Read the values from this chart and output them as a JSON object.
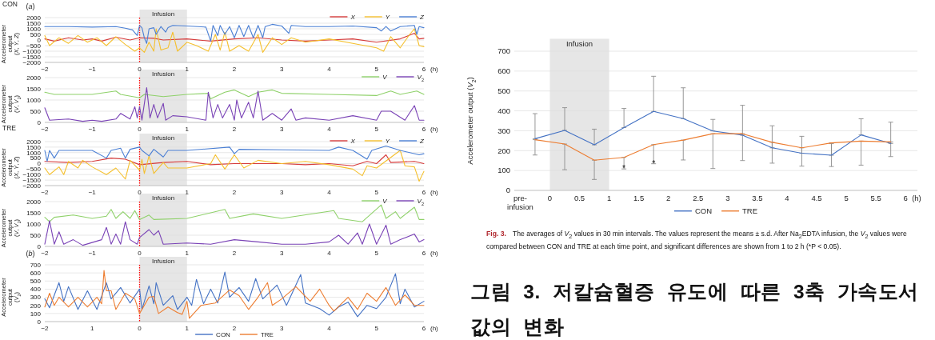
{
  "chart_data": [
    {
      "type": "line",
      "title": "CON",
      "xlabel": "(h)",
      "ylabel": "Accelerometer output (*X*, *Y*, *Z*)",
      "annotations": [
        "(*a*)"
      ],
      "xlim": [
        -2,
        6
      ],
      "ylim": [
        -2000,
        2000
      ],
      "xticks": [
        -2,
        -1,
        0,
        1,
        2,
        3,
        4,
        5,
        6
      ],
      "yticks": [
        -2000,
        -1500,
        -1000,
        -500,
        0,
        500,
        1000,
        1500,
        2000
      ],
      "grid": "y",
      "legend": "top right",
      "bands": [
        {
          "axis": "x",
          "from": 0,
          "to": 1,
          "label": "Infusion",
          "color": "#e6e6e6"
        }
      ],
      "ref_lines": [
        {
          "axis": "x",
          "value": 0,
          "color": "#ff0000",
          "line_style": "dotted"
        }
      ],
      "series": [
        {
          "name": "*X*",
          "color": "#d63b3b",
          "x": [
            -2,
            -1.8,
            -1.5,
            -1.2,
            -1,
            -0.8,
            -0.5,
            -0.2,
            0,
            0.3,
            0.5,
            1,
            1.5,
            2,
            2.5,
            3,
            3.5,
            4,
            4.5,
            5,
            5.5,
            5.8,
            5.9,
            6
          ],
          "values": [
            100,
            -100,
            200,
            0,
            100,
            -100,
            250,
            0,
            200,
            150,
            0,
            100,
            -100,
            100,
            200,
            0,
            -100,
            0,
            100,
            -200,
            100,
            600,
            100,
            150
          ]
        },
        {
          "name": "*Y*",
          "color": "#f5c02e",
          "x": [
            -2,
            -1.9,
            -1.7,
            -1.5,
            -1.3,
            -1.1,
            -0.9,
            -0.7,
            -0.5,
            -0.3,
            -0.1,
            0,
            0.1,
            0.2,
            0.3,
            0.35,
            0.45,
            0.6,
            0.7,
            0.8,
            1,
            1.2,
            1.45,
            1.6,
            1.7,
            1.8,
            1.9,
            2.1,
            2.3,
            2.5,
            2.6,
            2.8,
            3,
            3.2,
            3.5,
            4,
            4.5,
            5,
            5.15,
            5.3,
            5.5,
            5.7,
            5.8,
            5.9,
            6
          ],
          "values": [
            400,
            -500,
            200,
            -300,
            400,
            -200,
            200,
            -500,
            300,
            -400,
            -1000,
            -700,
            -1100,
            -200,
            -1000,
            1000,
            -900,
            -700,
            700,
            -1000,
            -200,
            -500,
            -1000,
            500,
            -900,
            700,
            -1000,
            -500,
            -1000,
            500,
            -1100,
            200,
            -400,
            200,
            -200,
            100,
            -300,
            -700,
            -1000,
            300,
            -700,
            500,
            1000,
            -500,
            -600
          ]
        },
        {
          "name": "*Z*",
          "color": "#4a7fd4",
          "x": [
            -2,
            -1.5,
            -1,
            -0.5,
            -0.3,
            -0.15,
            -0.05,
            0,
            0.05,
            0.1,
            0.15,
            0.2,
            0.3,
            0.35,
            0.45,
            0.55,
            0.6,
            0.7,
            1,
            1.4,
            1.5,
            1.55,
            1.65,
            1.7,
            1.8,
            1.9,
            2,
            2.1,
            2.2,
            2.3,
            2.4,
            2.5,
            2.6,
            2.65,
            2.8,
            3,
            3.15,
            3.2,
            3.5,
            4,
            4.5,
            5,
            5.1,
            5.2,
            5.3,
            5.5,
            5.8,
            5.85,
            5.9,
            6
          ],
          "values": [
            1200,
            1200,
            1150,
            1200,
            1050,
            900,
            400,
            1300,
            1100,
            200,
            -300,
            1000,
            1100,
            500,
            1200,
            700,
            1100,
            1300,
            1250,
            1150,
            -100,
            1300,
            400,
            1300,
            500,
            1200,
            200,
            1300,
            300,
            1300,
            200,
            1300,
            200,
            1200,
            1400,
            1250,
            600,
            1300,
            1200,
            1200,
            1250,
            1100,
            800,
            1200,
            800,
            1200,
            1300,
            500,
            1200,
            1100
          ]
        }
      ]
    },
    {
      "type": "line",
      "xlabel": "(h)",
      "ylabel": "Accelerometer output (*V*, *V*$_{2}$)",
      "xlim": [
        -2,
        6
      ],
      "ylim": [
        0,
        2000
      ],
      "xticks": [
        -2,
        -1,
        0,
        1,
        2,
        3,
        4,
        5,
        6
      ],
      "yticks": [
        0,
        500,
        1000,
        1500,
        2000
      ],
      "grid": "y",
      "legend": "top right",
      "bands": [
        {
          "axis": "x",
          "from": 0,
          "to": 1,
          "label": "Infusion",
          "color": "#e6e6e6"
        }
      ],
      "ref_lines": [
        {
          "axis": "x",
          "value": 0,
          "color": "#ff0000",
          "line_style": "dotted"
        }
      ],
      "series": [
        {
          "name": "*V*",
          "color": "#8fd16a",
          "x": [
            -2,
            -1.8,
            -1,
            -0.5,
            -0.4,
            0,
            0.1,
            0.5,
            1,
            1.45,
            1.5,
            1.8,
            2,
            2.3,
            2.5,
            2.8,
            3,
            4,
            5,
            5.3,
            5.5,
            5.85,
            6
          ],
          "values": [
            1350,
            1250,
            1250,
            1400,
            1250,
            1100,
            1250,
            1150,
            1250,
            1300,
            1050,
            1350,
            1450,
            1150,
            1350,
            1450,
            1300,
            1250,
            1200,
            1400,
            1250,
            1400,
            1250
          ]
        },
        {
          "name": "*V*$_{2}$",
          "color": "#7a43b6",
          "x": [
            -2,
            -1.9,
            -1.5,
            -1.2,
            -1,
            -0.8,
            -0.5,
            -0.4,
            -0.2,
            -0.1,
            -0.05,
            0,
            0.05,
            0.15,
            0.22,
            0.3,
            0.38,
            0.5,
            0.55,
            0.7,
            1,
            1.4,
            1.45,
            1.55,
            1.65,
            1.75,
            1.9,
            2,
            2.05,
            2.15,
            2.3,
            2.4,
            2.5,
            2.6,
            2.8,
            3,
            3.2,
            3.3,
            3.5,
            4,
            4.5,
            5,
            5.1,
            5.3,
            5.6,
            5.8,
            5.9,
            6
          ],
          "values": [
            650,
            100,
            150,
            50,
            100,
            50,
            150,
            400,
            150,
            700,
            200,
            700,
            100,
            1550,
            200,
            800,
            200,
            850,
            100,
            300,
            250,
            100,
            1350,
            200,
            800,
            200,
            800,
            100,
            1000,
            200,
            900,
            200,
            1400,
            100,
            400,
            100,
            600,
            100,
            200,
            100,
            300,
            100,
            500,
            500,
            100,
            750,
            100,
            100
          ]
        }
      ]
    },
    {
      "type": "line",
      "title": "TRE",
      "xlabel": "(h)",
      "ylabel": "Accelerometer output (*X*, *Y*, *Z*)",
      "xlim": [
        -2,
        6
      ],
      "ylim": [
        -2000,
        2000
      ],
      "xticks": [
        -2,
        -1,
        0,
        1,
        2,
        3,
        4,
        5,
        6
      ],
      "yticks": [
        -2000,
        -1500,
        -1000,
        -500,
        0,
        500,
        1000,
        1500,
        2000
      ],
      "grid": "y",
      "legend": "top right",
      "bands": [
        {
          "axis": "x",
          "from": 0,
          "to": 1,
          "label": "Infusion",
          "color": "#e6e6e6"
        }
      ],
      "ref_lines": [
        {
          "axis": "x",
          "value": 0,
          "color": "#ff0000",
          "line_style": "dotted"
        }
      ],
      "series": [
        {
          "name": "*X*",
          "color": "#d63b3b",
          "x": [
            -2,
            -1.5,
            -1,
            -0.6,
            -0.3,
            0,
            0.5,
            1,
            1.5,
            2,
            3,
            3.5,
            4,
            4.5,
            4.8,
            5,
            5.2,
            5.3,
            5.8,
            6
          ],
          "values": [
            200,
            100,
            200,
            500,
            400,
            -100,
            100,
            200,
            -100,
            0,
            0,
            -100,
            0,
            -200,
            200,
            0,
            800,
            100,
            200,
            0
          ]
        },
        {
          "name": "*Y*",
          "color": "#f5c02e",
          "x": [
            -2,
            -1.9,
            -1.7,
            -1.6,
            -1.5,
            -1.3,
            -1.2,
            -1,
            -0.7,
            -0.5,
            -0.3,
            -0.2,
            0,
            0.05,
            0.1,
            0.2,
            0.3,
            0.5,
            0.6,
            1,
            1.5,
            1.6,
            1.8,
            2,
            2.2,
            2.5,
            3,
            3.5,
            4,
            4.5,
            4.7,
            4.8,
            5,
            5.5,
            5.6,
            5.8,
            5.9,
            6
          ],
          "values": [
            -400,
            -1000,
            -300,
            -1000,
            200,
            -400,
            300,
            -300,
            -1000,
            -400,
            -1400,
            300,
            -600,
            400,
            -900,
            700,
            -900,
            100,
            -400,
            -400,
            0,
            800,
            -500,
            800,
            -400,
            300,
            0,
            200,
            -100,
            -500,
            -1100,
            -200,
            -400,
            1200,
            -200,
            -300,
            -1600,
            -700
          ]
        },
        {
          "name": "*Z*",
          "color": "#4a7fd4",
          "x": [
            -2,
            -1.95,
            -1.9,
            -1.8,
            -1.7,
            -1,
            -0.7,
            -0.6,
            -0.4,
            -0.3,
            -0.2,
            0,
            0.05,
            0.2,
            0.3,
            0.5,
            0.6,
            1,
            1.9,
            2,
            2.1,
            3,
            4,
            4.2,
            4.5,
            4.8,
            4.9,
            5.2,
            5.5,
            5.9,
            6
          ],
          "values": [
            1200,
            200,
            1200,
            500,
            1200,
            1200,
            500,
            1200,
            1400,
            500,
            1300,
            1500,
            1200,
            700,
            1300,
            600,
            1200,
            1200,
            1500,
            900,
            1300,
            1250,
            1200,
            1500,
            1200,
            400,
            1200,
            1600,
            1200,
            800,
            900
          ]
        }
      ]
    },
    {
      "type": "line",
      "xlabel": "(h)",
      "ylabel": "Accelerometer output (*V*, *V*$_{2}$)",
      "xlim": [
        -2,
        6
      ],
      "ylim": [
        0,
        2000
      ],
      "xticks": [
        -2,
        -1,
        0,
        1,
        2,
        3,
        4,
        5,
        6
      ],
      "yticks": [
        0,
        500,
        1000,
        1500,
        2000
      ],
      "grid": "y",
      "legend": "top right",
      "bands": [
        {
          "axis": "x",
          "from": 0,
          "to": 1,
          "label": "Infusion",
          "color": "#e6e6e6"
        }
      ],
      "ref_lines": [
        {
          "axis": "x",
          "value": 0,
          "color": "#ff0000",
          "line_style": "dotted"
        }
      ],
      "series": [
        {
          "name": "*V*",
          "color": "#8fd16a",
          "x": [
            -2,
            -1.9,
            -1.8,
            -1.4,
            -1,
            -0.7,
            -0.6,
            -0.5,
            -0.35,
            -0.2,
            -0.1,
            0,
            0.2,
            0.3,
            1,
            1.8,
            1.9,
            2.4,
            3,
            4.1,
            4.2,
            4.7,
            5.1,
            5.2,
            5.4,
            5.5,
            5.8,
            5.9,
            6
          ],
          "values": [
            1300,
            1100,
            1300,
            1400,
            1250,
            1350,
            1650,
            1250,
            1550,
            1250,
            1600,
            1200,
            1400,
            1200,
            1250,
            1650,
            1250,
            1450,
            1250,
            1600,
            1250,
            1100,
            1850,
            1250,
            1550,
            1250,
            1750,
            1200,
            1200
          ]
        },
        {
          "name": "*V*$_{2}$",
          "color": "#7a43b6",
          "x": [
            -2,
            -1.9,
            -1.8,
            -1.7,
            -1.6,
            -1.4,
            -1.2,
            -0.8,
            -0.7,
            -0.6,
            -0.5,
            -0.4,
            -0.3,
            -0.2,
            -0.05,
            0,
            0.2,
            0.3,
            0.4,
            0.5,
            1,
            1.5,
            2,
            2.5,
            3,
            3.5,
            4,
            4.2,
            4.4,
            4.6,
            4.7,
            4.85,
            5,
            5.2,
            5.3,
            5.5,
            5.8,
            5.9,
            6
          ],
          "values": [
            100,
            1150,
            100,
            650,
            100,
            300,
            50,
            300,
            850,
            100,
            550,
            100,
            1100,
            300,
            100,
            400,
            750,
            500,
            700,
            100,
            150,
            100,
            300,
            200,
            100,
            100,
            200,
            500,
            100,
            600,
            100,
            1000,
            100,
            950,
            100,
            300,
            550,
            200,
            300
          ]
        }
      ]
    },
    {
      "type": "line",
      "xlabel": "(h)",
      "ylabel": "Accelerometer output (*V*$_{2}$)",
      "annotations": [
        "(*b*)"
      ],
      "xlim": [
        -2,
        6
      ],
      "ylim": [
        0,
        700
      ],
      "xticks": [
        -2,
        {
          "value": -1,
          "label": "1"
        },
        0,
        1,
        2,
        3,
        4,
        5,
        6
      ],
      "yticks": [
        0,
        100,
        200,
        300,
        400,
        500,
        600,
        700
      ],
      "grid": "y",
      "legend": "bottom",
      "bands": [
        {
          "axis": "x",
          "from": 0,
          "to": 1,
          "label": "Infusion",
          "color": "#e6e6e6"
        }
      ],
      "ref_lines": [
        {
          "axis": "x",
          "value": 0,
          "color": "#ff0000",
          "line_style": "dotted"
        }
      ],
      "series": [
        {
          "name": "CON",
          "color": "#4472c4",
          "x": [
            -2,
            -1.9,
            -1.7,
            -1.6,
            -1.5,
            -1.3,
            -1.1,
            -0.9,
            -0.7,
            -0.6,
            -0.4,
            -0.2,
            0,
            0.05,
            0.2,
            0.3,
            0.35,
            0.5,
            0.7,
            0.8,
            1,
            1.1,
            1.2,
            1.35,
            1.5,
            1.65,
            1.8,
            1.9,
            2.1,
            2.3,
            2.45,
            2.6,
            2.9,
            3.1,
            3.4,
            3.5,
            3.8,
            4,
            4.2,
            4.4,
            4.6,
            4.8,
            5,
            5.2,
            5.4,
            5.5,
            5.6,
            5.8,
            6
          ],
          "values": [
            280,
            170,
            480,
            250,
            430,
            150,
            380,
            150,
            480,
            280,
            420,
            230,
            400,
            150,
            440,
            220,
            480,
            200,
            320,
            150,
            300,
            200,
            520,
            220,
            400,
            230,
            610,
            300,
            420,
            250,
            530,
            280,
            450,
            200,
            580,
            230,
            160,
            80,
            180,
            240,
            60,
            200,
            160,
            300,
            590,
            220,
            400,
            180,
            250
          ]
        },
        {
          "name": "TRE",
          "color": "#ed7d31",
          "x": [
            -2,
            -1.9,
            -1.8,
            -1.7,
            -1.5,
            -1.3,
            -1.1,
            -0.9,
            -0.8,
            -0.75,
            -0.7,
            -0.6,
            -0.5,
            -0.3,
            -0.1,
            0,
            0.2,
            0.3,
            0.4,
            0.6,
            0.8,
            0.9,
            1,
            1.05,
            1.3,
            1.6,
            1.9,
            2.1,
            2.3,
            2.5,
            2.7,
            2.8,
            3,
            3.3,
            3.6,
            3.8,
            4,
            4.1,
            4.4,
            4.6,
            4.8,
            5,
            5.2,
            5.4,
            5.6,
            5.8,
            6
          ],
          "values": [
            180,
            350,
            200,
            300,
            180,
            300,
            180,
            300,
            220,
            630,
            380,
            380,
            150,
            350,
            280,
            100,
            300,
            310,
            100,
            180,
            110,
            90,
            250,
            40,
            200,
            230,
            390,
            320,
            150,
            300,
            480,
            200,
            280,
            430,
            250,
            400,
            200,
            130,
            300,
            150,
            350,
            250,
            420,
            200,
            330,
            200,
            200
          ]
        }
      ]
    },
    {
      "type": "line",
      "xlabel": "(h)",
      "ylabel": "Accelerometer output (*V*$_{2}$)",
      "xlim": [
        -0.6,
        6.2
      ],
      "ylim": [
        0,
        700
      ],
      "xticks": [
        {
          "value": -0.5,
          "label": "pre-infusion"
        },
        0,
        0.5,
        1,
        1.5,
        2,
        2.5,
        3,
        3.5,
        4,
        4.5,
        5,
        5.5,
        6
      ],
      "yticks": [
        0,
        100,
        200,
        300,
        400,
        500,
        600,
        700
      ],
      "grid": "y",
      "legend": "bottom",
      "bands": [
        {
          "axis": "x",
          "from": 0,
          "to": 1,
          "label": "Infusion",
          "color": "#e6e6e6"
        }
      ],
      "x": [
        -0.25,
        0.25,
        0.75,
        1.25,
        1.75,
        2.25,
        2.75,
        3.25,
        3.75,
        4.25,
        4.75,
        5.25,
        5.75
      ],
      "series": [
        {
          "name": "CON",
          "color": "#4472c4",
          "values": [
            260,
            302,
            229,
            316,
            397,
            361,
            299,
            278,
            214,
            187,
            177,
            279,
            236
          ],
          "errors": [
            [
              260,
              386
            ],
            [
              302,
              416
            ],
            [
              229,
              308
            ],
            [
              316,
              412
            ],
            [
              397,
              574
            ],
            [
              361,
              516
            ],
            [
              299,
              357
            ],
            [
              278,
              428
            ],
            [
              214,
              325
            ],
            [
              187,
              272
            ],
            [
              177,
              235
            ],
            [
              279,
              360
            ],
            [
              236,
              343
            ]
          ]
        },
        {
          "name": "TRE",
          "color": "#ed7d31",
          "values": [
            255,
            233,
            152,
            166,
            230,
            253,
            285,
            285,
            242,
            214,
            239,
            248,
            244
          ],
          "errors": [
            [
              178,
              255
            ],
            [
              104,
              233
            ],
            [
              55,
              152
            ],
            [
              108,
              166
            ],
            [
              134,
              230
            ],
            [
              153,
              253
            ],
            [
              110,
              285
            ],
            [
              150,
              285
            ],
            [
              137,
              242
            ],
            [
              122,
              214
            ],
            [
              120,
              239
            ],
            [
              127,
              248
            ],
            [
              170,
              244
            ]
          ]
        }
      ],
      "annotations": [
        {
          "text": "*",
          "x": 1.25,
          "y": 95
        },
        {
          "text": "*",
          "x": 1.75,
          "y": 120
        },
        "**Fig. 3.** The averages of *V*$_{2}$ values in 30 min intervals. The values represent the means ± s.d. After Na$_{2}$EDTA infusion, the *V*$_{2}$ values were compared between CON and TRE at each time point, and significant differences are shown from 1 to 2 h (*P < 0.05).",
        "그림 3. 저칼슘혈증 유도에 따른 3축 가속도서 값의 변화"
      ]
    }
  ]
}
